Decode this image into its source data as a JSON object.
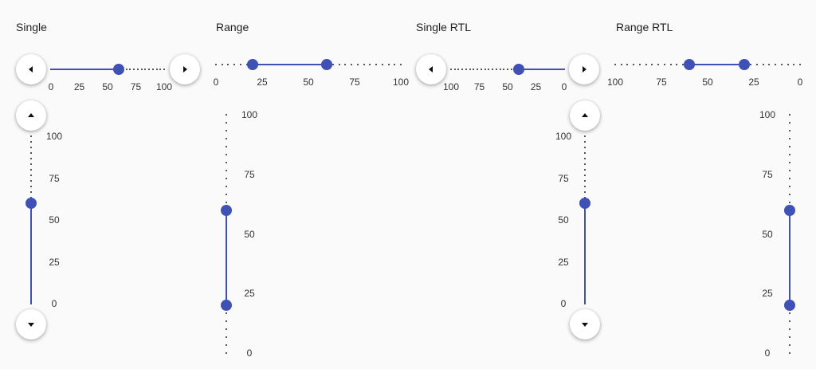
{
  "colors": {
    "accent": "#3f51b5",
    "background": "#fafafa",
    "dots": "#222222"
  },
  "sections": {
    "single": {
      "title": "Single",
      "horizontal": {
        "value": 60,
        "ticks": [
          "0",
          "25",
          "50",
          "75",
          "100"
        ],
        "decrement_icon": "caret-left-icon",
        "increment_icon": "caret-right-icon"
      },
      "vertical": {
        "value": 60,
        "ticks": [
          "100",
          "75",
          "50",
          "25",
          "0"
        ],
        "increment_icon": "caret-up-icon",
        "decrement_icon": "caret-down-icon"
      }
    },
    "range": {
      "title": "Range",
      "horizontal": {
        "values": [
          20,
          60
        ],
        "ticks": [
          "0",
          "25",
          "50",
          "75",
          "100"
        ]
      },
      "vertical": {
        "values": [
          20,
          60
        ],
        "ticks": [
          "100",
          "75",
          "50",
          "25",
          "0"
        ]
      }
    },
    "single_rtl": {
      "title": "Single RTL",
      "horizontal": {
        "value": 40,
        "ticks": [
          "100",
          "75",
          "50",
          "25",
          "0"
        ],
        "decrement_icon": "caret-left-icon",
        "increment_icon": "caret-right-icon"
      },
      "vertical": {
        "value": 60,
        "ticks": [
          "100",
          "75",
          "50",
          "25",
          "0"
        ],
        "increment_icon": "caret-up-icon",
        "decrement_icon": "caret-down-icon"
      }
    },
    "range_rtl": {
      "title": "Range RTL",
      "horizontal": {
        "values": [
          60,
          30
        ],
        "ticks": [
          "100",
          "75",
          "50",
          "25",
          "0"
        ]
      },
      "vertical": {
        "values": [
          20,
          60
        ],
        "ticks": [
          "100",
          "75",
          "50",
          "25",
          "0"
        ]
      }
    }
  }
}
